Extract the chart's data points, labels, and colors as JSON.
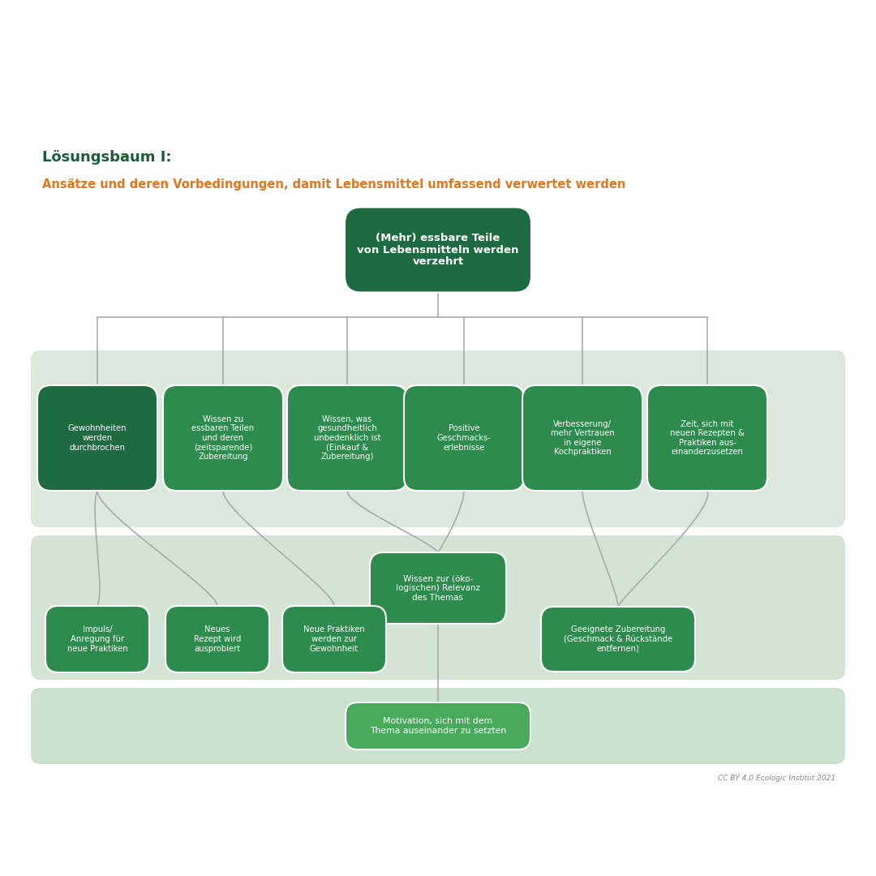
{
  "title_line1": "Lösungsbaum I:",
  "title_line1_color": "#1a5c38",
  "title_line2": "Ansätze und deren Vorbedingungen, damit Lebensmittel umfassend verwertet werden",
  "title_line2_color": "#e07820",
  "bg_color": "#ffffff",
  "band1_color": "#dce8dc",
  "band2_color": "#d3e4d5",
  "band3_color": "#cce0ce",
  "dark_green": "#1e6b42",
  "mid_green": "#2d8b4e",
  "light_green": "#4aaa5c",
  "root_node": "(Mehr) essbare Teile\nvon Lebensmitteln werden\nverzehrt",
  "level1_nodes": [
    "Gewohnheiten\nwerden\ndurchbrochen",
    "Wissen zu\nessbaren Teilen\nund deren\n(zeitsparende)\nZubereitung",
    "Wissen, was\ngesundheitlich\nunbedenklich ist\n(Einkauf &\nZubereitung)",
    "Positive\nGeschmacks-\nerlebnisse",
    "Verbesserung/\nmehr Vertrauen\nin eigene\nKochpraktiken",
    "Zeit, sich mit\nneuen Rezepten &\nPraktiken aus-\neinanderzusetzen"
  ],
  "level2_center_node": "Wissen zur (öko-\nlogischen) Relevanz\ndes Themas",
  "level2_left_nodes": [
    "Impuls/\nAnregung für\nneue Praktiken",
    "Neues\nRezept wird\nausprobiert",
    "Neue Praktiken\nwerden zur\nGewohnheit"
  ],
  "level2_right_node": "Geeignete Zubereitung\n(Geschmack & Rückstände\nentfernen)",
  "level3_node": "Motivation, sich mit dem\nThema auseinander zu setzten",
  "credit": "CC BY 4.0 Ecologic Institut 2021"
}
